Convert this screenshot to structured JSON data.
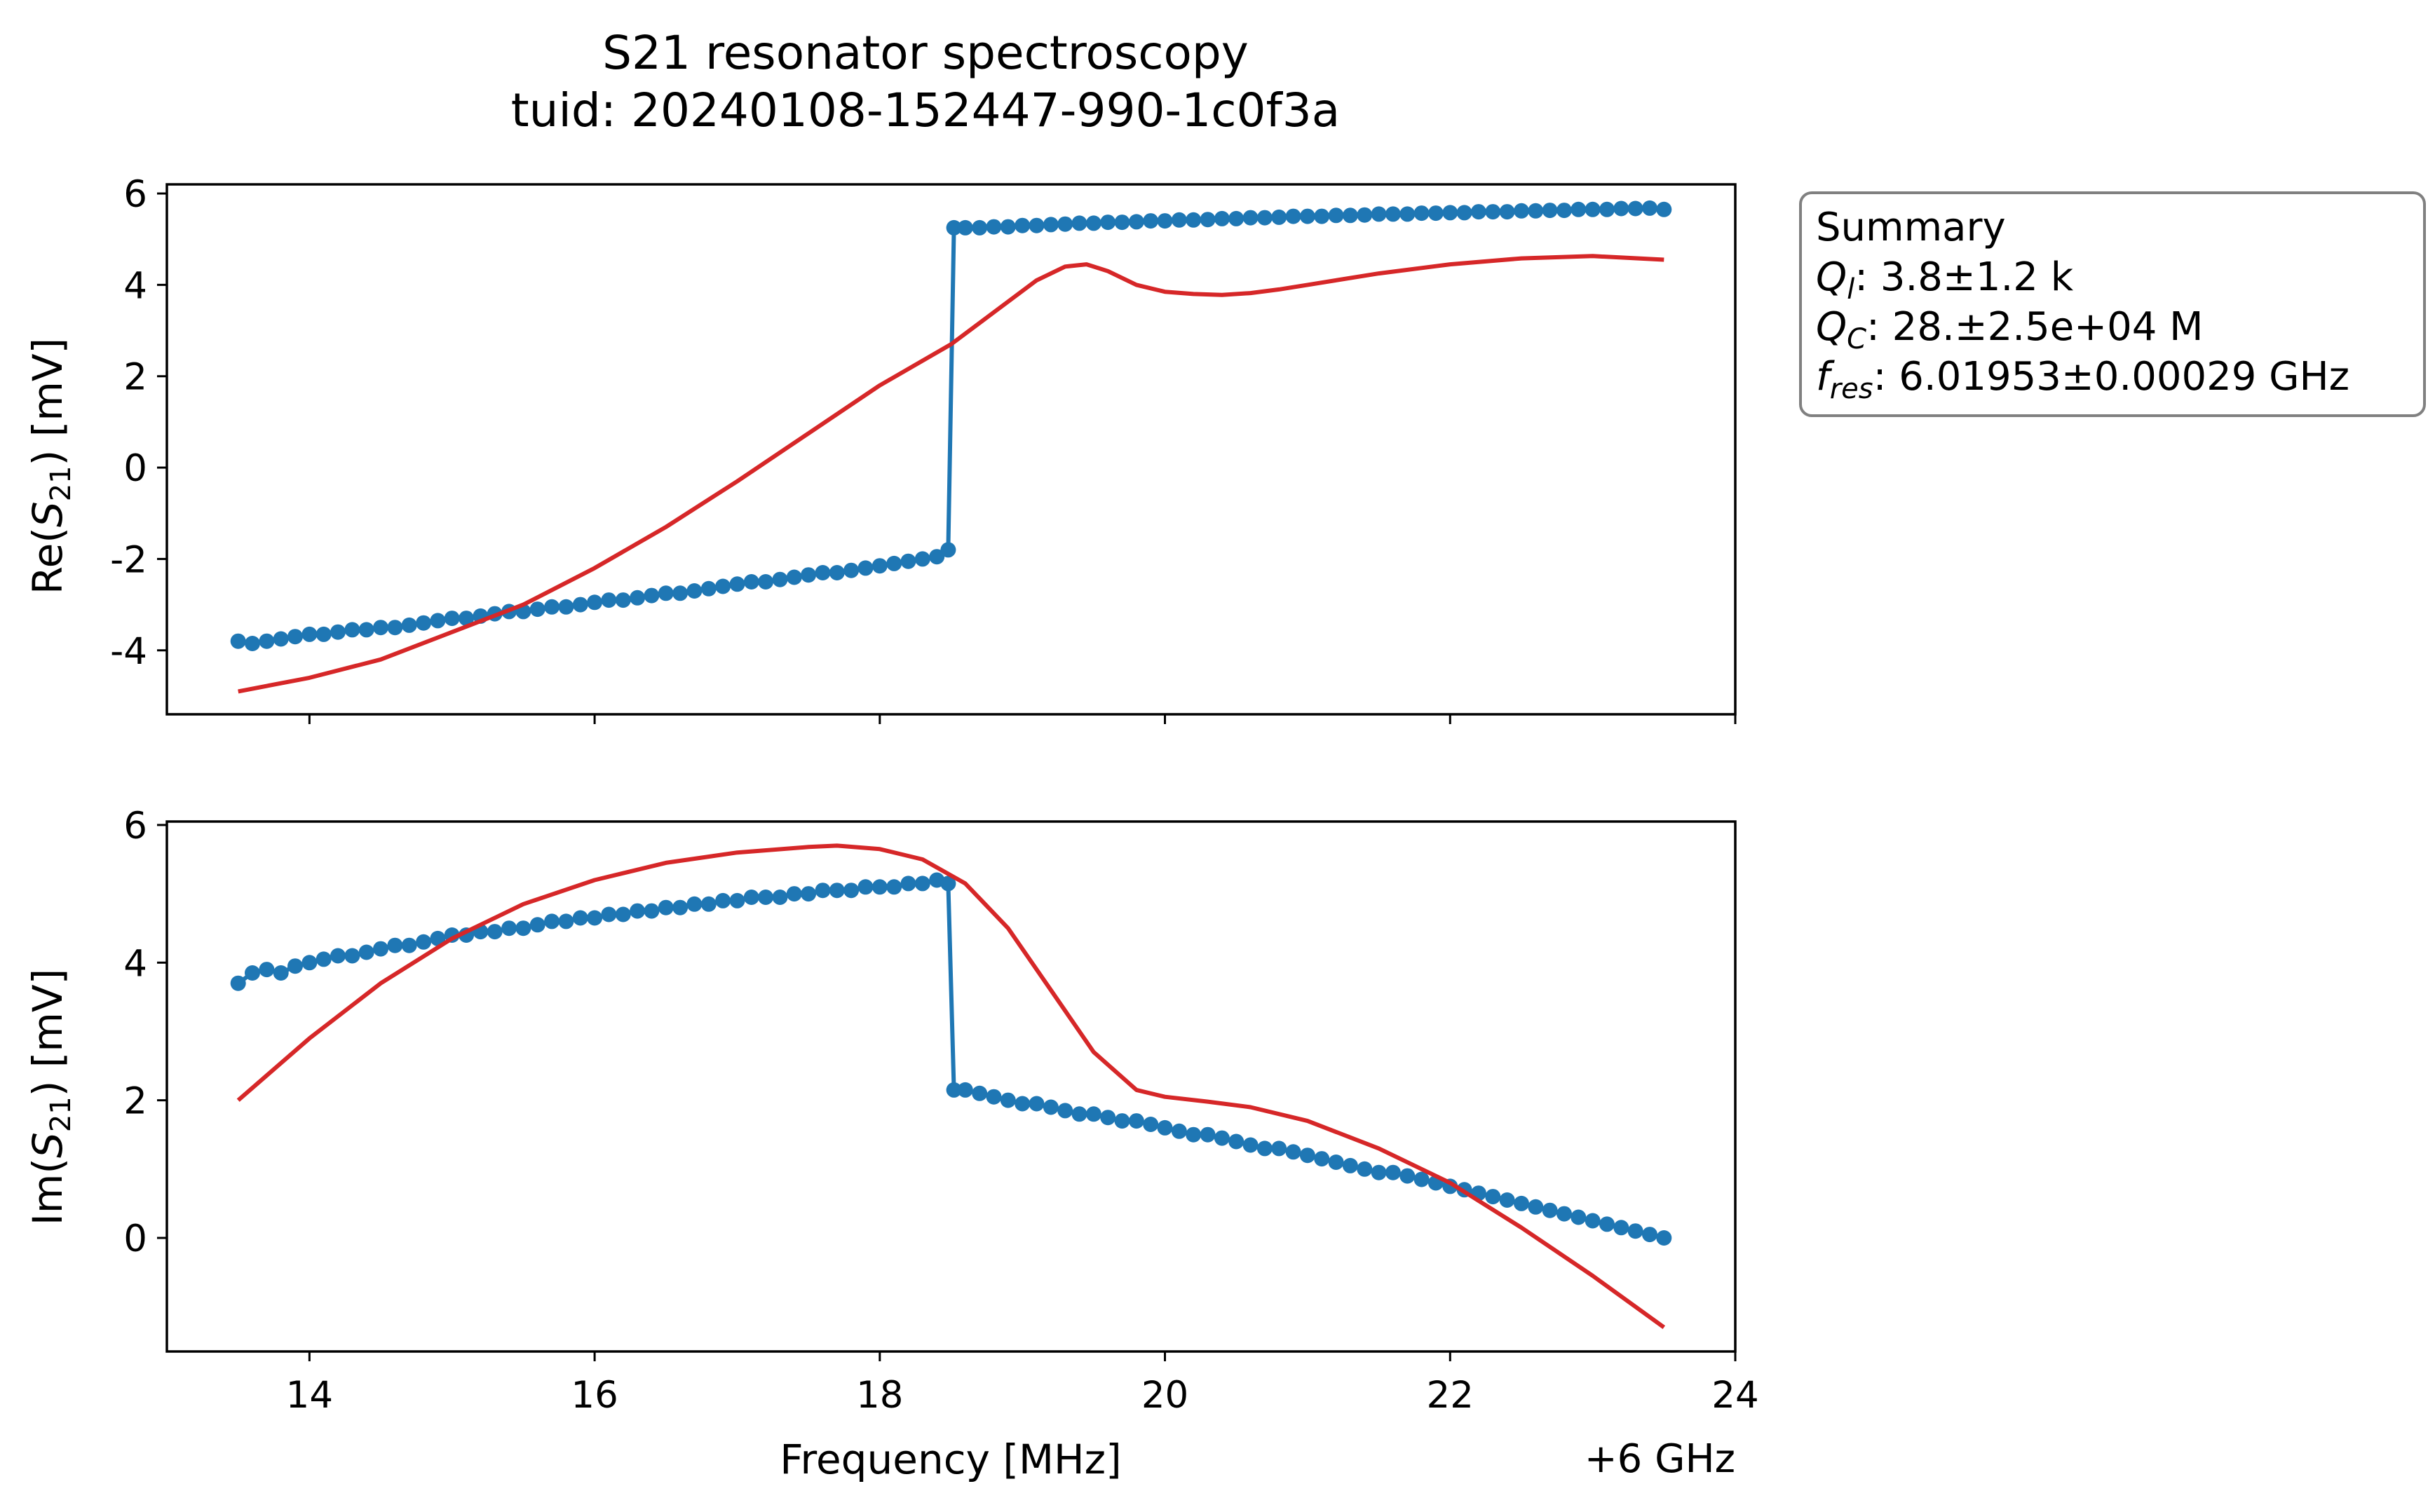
{
  "title_line1": "S21 resonator spectroscopy",
  "title_line2": "tuid: 20240108-152447-990-1c0f3a",
  "summary_box": {
    "heading": "Summary",
    "rows": [
      {
        "symbol": "Q",
        "sub": "l",
        "value": ": 3.8±1.2 k"
      },
      {
        "symbol": "Q",
        "sub": "C",
        "value": ": 28.±2.5e+04 M"
      },
      {
        "symbol": "f",
        "sub": "res",
        "value": ": 6.01953±0.00029 GHz"
      }
    ]
  },
  "x_axis": {
    "label": "Frequency [MHz]",
    "offset_label": "+6 GHz",
    "ticks": [
      "14",
      "16",
      "18",
      "20",
      "22",
      "24"
    ]
  },
  "colors": {
    "data": "#1f77b4",
    "fit": "#d62728",
    "legend_border": "#808080"
  },
  "chart_data": [
    {
      "type": "line",
      "panel": "top",
      "ylabel_prefix": "Re(",
      "ylabel_symbol": "S",
      "ylabel_sub": "21",
      "ylabel_suffix": ") [mV]",
      "xlim": [
        13.0,
        24.0
      ],
      "ylim": [
        -5.4,
        6.2
      ],
      "yticks": [
        -4,
        -2,
        0,
        2,
        4,
        6
      ],
      "ytick_labels": [
        "-4",
        "-2",
        "0",
        "2",
        "4",
        "6"
      ],
      "series": [
        {
          "kind": "data",
          "x": [
            13.5,
            13.6,
            13.7,
            13.8,
            13.9,
            14.0,
            14.1,
            14.2,
            14.3,
            14.4,
            14.5,
            14.6,
            14.7,
            14.8,
            14.9,
            15.0,
            15.1,
            15.2,
            15.3,
            15.4,
            15.5,
            15.6,
            15.7,
            15.8,
            15.9,
            16.0,
            16.1,
            16.2,
            16.3,
            16.4,
            16.5,
            16.6,
            16.7,
            16.8,
            16.9,
            17.0,
            17.1,
            17.2,
            17.3,
            17.4,
            17.5,
            17.6,
            17.7,
            17.8,
            17.9,
            18.0,
            18.1,
            18.2,
            18.3,
            18.4,
            18.48,
            18.52,
            18.6,
            18.7,
            18.8,
            18.9,
            19.0,
            19.1,
            19.2,
            19.3,
            19.4,
            19.5,
            19.6,
            19.7,
            19.8,
            19.9,
            20.0,
            20.1,
            20.2,
            20.3,
            20.4,
            20.5,
            20.6,
            20.7,
            20.8,
            20.9,
            21.0,
            21.1,
            21.2,
            21.3,
            21.4,
            21.5,
            21.6,
            21.7,
            21.8,
            21.9,
            22.0,
            22.1,
            22.2,
            22.3,
            22.4,
            22.5,
            22.6,
            22.7,
            22.8,
            22.9,
            23.0,
            23.1,
            23.2,
            23.3,
            23.4,
            23.5
          ],
          "y": [
            -3.8,
            -3.85,
            -3.8,
            -3.75,
            -3.7,
            -3.65,
            -3.65,
            -3.6,
            -3.55,
            -3.55,
            -3.5,
            -3.5,
            -3.45,
            -3.4,
            -3.35,
            -3.3,
            -3.3,
            -3.25,
            -3.2,
            -3.15,
            -3.15,
            -3.1,
            -3.05,
            -3.05,
            -3.0,
            -2.95,
            -2.9,
            -2.9,
            -2.85,
            -2.8,
            -2.75,
            -2.75,
            -2.7,
            -2.65,
            -2.6,
            -2.55,
            -2.5,
            -2.5,
            -2.45,
            -2.4,
            -2.35,
            -2.3,
            -2.3,
            -2.25,
            -2.2,
            -2.15,
            -2.1,
            -2.05,
            -2.0,
            -1.95,
            -1.8,
            5.25,
            5.25,
            5.25,
            5.27,
            5.27,
            5.3,
            5.3,
            5.32,
            5.33,
            5.35,
            5.35,
            5.37,
            5.37,
            5.38,
            5.4,
            5.4,
            5.42,
            5.42,
            5.43,
            5.45,
            5.45,
            5.47,
            5.47,
            5.48,
            5.5,
            5.5,
            5.5,
            5.52,
            5.52,
            5.53,
            5.55,
            5.55,
            5.55,
            5.57,
            5.57,
            5.58,
            5.58,
            5.6,
            5.6,
            5.6,
            5.62,
            5.62,
            5.63,
            5.63,
            5.65,
            5.65,
            5.65,
            5.67,
            5.67,
            5.68,
            5.65
          ]
        },
        {
          "kind": "fit",
          "x": [
            13.5,
            14.0,
            14.5,
            15.0,
            15.5,
            16.0,
            16.5,
            17.0,
            17.5,
            18.0,
            18.5,
            18.8,
            19.1,
            19.3,
            19.45,
            19.6,
            19.8,
            20.0,
            20.2,
            20.4,
            20.6,
            20.8,
            21.0,
            21.5,
            22.0,
            22.5,
            23.0,
            23.5
          ],
          "y": [
            -4.9,
            -4.6,
            -4.2,
            -3.6,
            -3.0,
            -2.2,
            -1.3,
            -0.3,
            0.75,
            1.8,
            2.7,
            3.4,
            4.1,
            4.4,
            4.45,
            4.3,
            4.0,
            3.85,
            3.8,
            3.78,
            3.82,
            3.9,
            4.0,
            4.25,
            4.45,
            4.58,
            4.63,
            4.55
          ]
        }
      ]
    },
    {
      "type": "line",
      "panel": "bottom",
      "ylabel_prefix": "Im(",
      "ylabel_symbol": "S",
      "ylabel_sub": "21",
      "ylabel_suffix": ") [mV]",
      "xlim": [
        13.0,
        24.0
      ],
      "ylim": [
        -1.65,
        6.05
      ],
      "yticks": [
        0,
        2,
        4,
        6
      ],
      "ytick_labels": [
        "0",
        "2",
        "4",
        "6"
      ],
      "series": [
        {
          "kind": "data",
          "x": [
            13.5,
            13.6,
            13.7,
            13.8,
            13.9,
            14.0,
            14.1,
            14.2,
            14.3,
            14.4,
            14.5,
            14.6,
            14.7,
            14.8,
            14.9,
            15.0,
            15.1,
            15.2,
            15.3,
            15.4,
            15.5,
            15.6,
            15.7,
            15.8,
            15.9,
            16.0,
            16.1,
            16.2,
            16.3,
            16.4,
            16.5,
            16.6,
            16.7,
            16.8,
            16.9,
            17.0,
            17.1,
            17.2,
            17.3,
            17.4,
            17.5,
            17.6,
            17.7,
            17.8,
            17.9,
            18.0,
            18.1,
            18.2,
            18.3,
            18.4,
            18.48,
            18.52,
            18.6,
            18.7,
            18.8,
            18.9,
            19.0,
            19.1,
            19.2,
            19.3,
            19.4,
            19.5,
            19.6,
            19.7,
            19.8,
            19.9,
            20.0,
            20.1,
            20.2,
            20.3,
            20.4,
            20.5,
            20.6,
            20.7,
            20.8,
            20.9,
            21.0,
            21.1,
            21.2,
            21.3,
            21.4,
            21.5,
            21.6,
            21.7,
            21.8,
            21.9,
            22.0,
            22.1,
            22.2,
            22.3,
            22.4,
            22.5,
            22.6,
            22.7,
            22.8,
            22.9,
            23.0,
            23.1,
            23.2,
            23.3,
            23.4,
            23.5
          ],
          "y": [
            3.7,
            3.85,
            3.9,
            3.85,
            3.95,
            4.0,
            4.05,
            4.1,
            4.1,
            4.15,
            4.2,
            4.25,
            4.25,
            4.3,
            4.35,
            4.4,
            4.4,
            4.45,
            4.45,
            4.5,
            4.5,
            4.55,
            4.6,
            4.6,
            4.65,
            4.65,
            4.7,
            4.7,
            4.75,
            4.75,
            4.8,
            4.8,
            4.85,
            4.85,
            4.9,
            4.9,
            4.95,
            4.95,
            4.95,
            5.0,
            5.0,
            5.05,
            5.05,
            5.05,
            5.1,
            5.1,
            5.1,
            5.15,
            5.15,
            5.2,
            5.15,
            2.15,
            2.15,
            2.1,
            2.05,
            2.0,
            1.95,
            1.95,
            1.9,
            1.85,
            1.8,
            1.8,
            1.75,
            1.7,
            1.7,
            1.65,
            1.6,
            1.55,
            1.5,
            1.5,
            1.45,
            1.4,
            1.35,
            1.3,
            1.3,
            1.25,
            1.2,
            1.15,
            1.1,
            1.05,
            1.0,
            0.95,
            0.95,
            0.9,
            0.85,
            0.8,
            0.75,
            0.7,
            0.65,
            0.6,
            0.55,
            0.5,
            0.45,
            0.4,
            0.35,
            0.3,
            0.25,
            0.2,
            0.15,
            0.1,
            0.05,
            0.0
          ]
        },
        {
          "kind": "fit",
          "x": [
            13.5,
            14.0,
            14.5,
            15.0,
            15.5,
            16.0,
            16.5,
            17.0,
            17.5,
            17.7,
            18.0,
            18.3,
            18.6,
            18.9,
            19.2,
            19.5,
            19.8,
            20.0,
            20.3,
            20.6,
            21.0,
            21.5,
            22.0,
            22.5,
            23.0,
            23.5
          ],
          "y": [
            2.0,
            2.9,
            3.7,
            4.35,
            4.85,
            5.2,
            5.45,
            5.6,
            5.68,
            5.7,
            5.65,
            5.5,
            5.15,
            4.5,
            3.6,
            2.7,
            2.15,
            2.05,
            1.98,
            1.9,
            1.7,
            1.3,
            0.8,
            0.15,
            -0.55,
            -1.3
          ]
        }
      ]
    }
  ]
}
